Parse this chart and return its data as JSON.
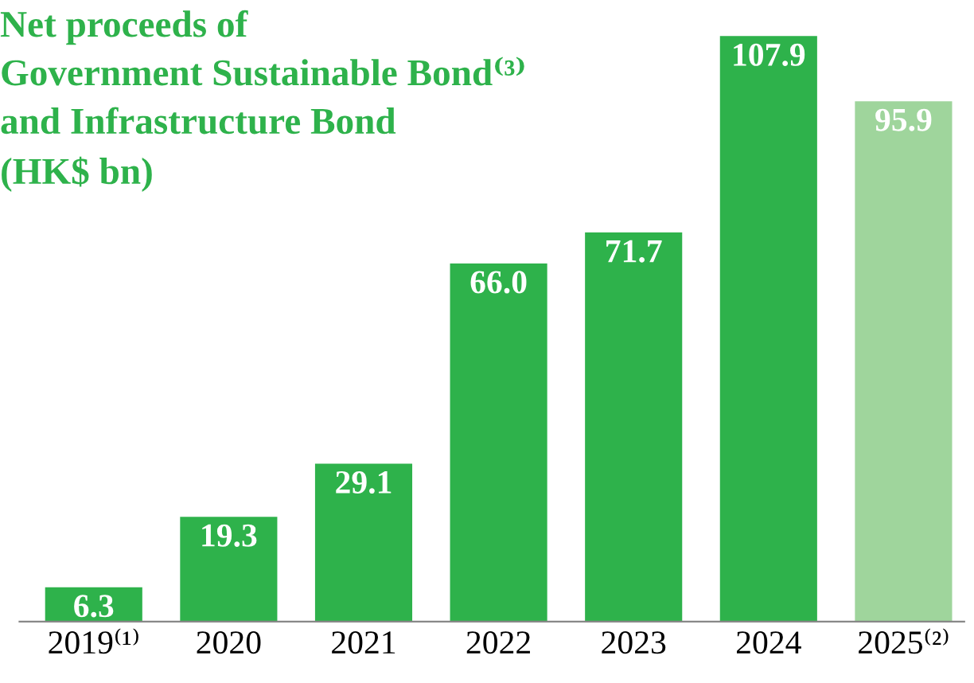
{
  "chart_data": {
    "type": "bar",
    "title": "Net proceeds of\nGovernment Sustainable Bond⁽³⁾\nand Infrastructure Bond\n(HK$ bn)",
    "categories": [
      "2019⁽¹⁾",
      "2020",
      "2021",
      "2022",
      "2023",
      "2024",
      "2025⁽²⁾"
    ],
    "values": [
      6.3,
      19.3,
      29.1,
      66.0,
      71.7,
      107.9,
      95.9
    ],
    "value_labels": [
      "6.3",
      "19.3",
      "29.1",
      "66.0",
      "71.7",
      "107.9",
      "95.9"
    ],
    "colors": [
      "#2eb24b",
      "#2eb24b",
      "#2eb24b",
      "#2eb24b",
      "#2eb24b",
      "#2eb24b",
      "#9fd59c"
    ],
    "relative": false,
    "grid": false,
    "legend": false,
    "tick_labels": "x"
  }
}
